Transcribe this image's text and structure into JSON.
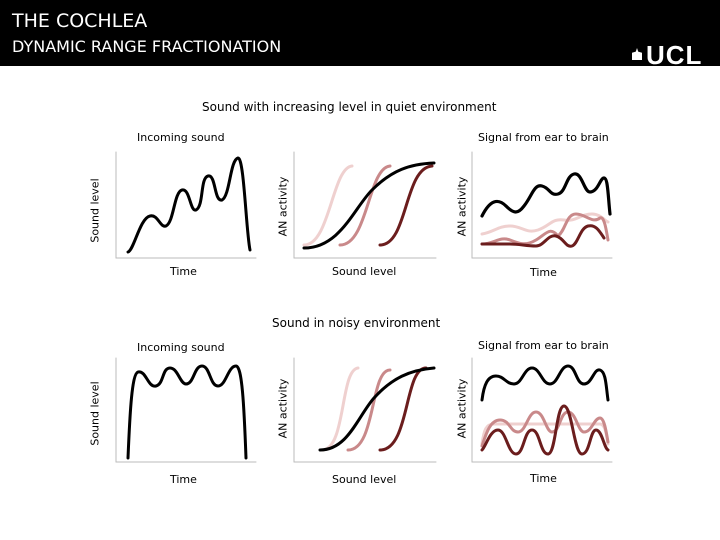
{
  "header": {
    "title": "THE COCHLEA",
    "subtitle": "DYNAMIC RANGE FRACTIONATION",
    "logo": "UCL"
  },
  "colors": {
    "black": "#000000",
    "dark_red": "#6b1d1d",
    "mid_rose": "#c9898a",
    "pale_rose": "#efd0cf"
  },
  "quiet": {
    "heading": "Sound with increasing level in quiet environment",
    "left_title": "Incoming sound",
    "right_title": "Signal from ear to brain",
    "y_label_sound": "Sound level",
    "y_label_an_mid": "AN activity",
    "y_label_an_right": "AN activity",
    "x_label_left": "Time",
    "x_label_mid": "Sound level",
    "x_label_right": "Time"
  },
  "noisy": {
    "heading": "Sound in noisy environment",
    "left_title": "Incoming sound",
    "right_title": "Signal from ear to brain",
    "y_label_sound": "Sound level",
    "y_label_an_mid": "AN activity",
    "y_label_an_right": "AN activity",
    "x_label_left": "Time",
    "x_label_mid": "Sound level",
    "x_label_right": "Time"
  }
}
